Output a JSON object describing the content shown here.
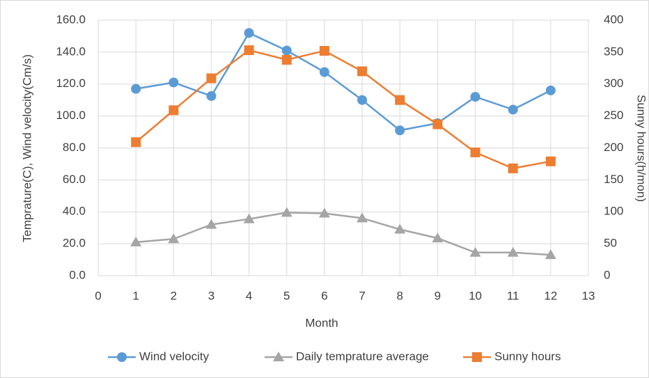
{
  "chart_data": {
    "type": "line",
    "xlabel": "Month",
    "ylabel": "Temprature(C), Wind velocity(Cm/s)",
    "y2label": "Sunny hours(h/mon)",
    "x": [
      1,
      2,
      3,
      4,
      5,
      6,
      7,
      8,
      9,
      10,
      11,
      12
    ],
    "xlim": [
      0,
      13
    ],
    "xticks": [
      0,
      1,
      2,
      3,
      4,
      5,
      6,
      7,
      8,
      9,
      10,
      11,
      12,
      13
    ],
    "ylim": [
      0,
      160
    ],
    "yticks": [
      {
        "value": 0,
        "label": "0.0"
      },
      {
        "value": 20,
        "label": "20.0"
      },
      {
        "value": 40,
        "label": "40.0"
      },
      {
        "value": 60,
        "label": "60.0"
      },
      {
        "value": 80,
        "label": "80.0"
      },
      {
        "value": 100,
        "label": "100.0"
      },
      {
        "value": 120,
        "label": "120.0"
      },
      {
        "value": 140,
        "label": "140.0"
      },
      {
        "value": 160,
        "label": "160.0"
      }
    ],
    "y2lim": [
      0,
      400
    ],
    "y2ticks": [
      0,
      50,
      100,
      150,
      200,
      250,
      300,
      350,
      400
    ],
    "grid": true,
    "legend": "bottom",
    "series": [
      {
        "name": "Wind velocity",
        "color": "#5b9bd5",
        "marker": "circle",
        "values": [
          117,
          121,
          112.5,
          152,
          141,
          127.5,
          110,
          91,
          95.5,
          112,
          104,
          116
        ]
      },
      {
        "name": "Daily temprature average",
        "color": "#a5a5a5",
        "marker": "triangle",
        "values": [
          21,
          23,
          32,
          35.5,
          39.5,
          39,
          36,
          29,
          23.5,
          14.5,
          14.5,
          13
        ]
      },
      {
        "name": "Sunny hours",
        "color": "#ed7d31",
        "marker": "square",
        "axis": "y2",
        "values": [
          209,
          259,
          309,
          353,
          338,
          352,
          320,
          275,
          237,
          193,
          168,
          179
        ]
      }
    ]
  }
}
